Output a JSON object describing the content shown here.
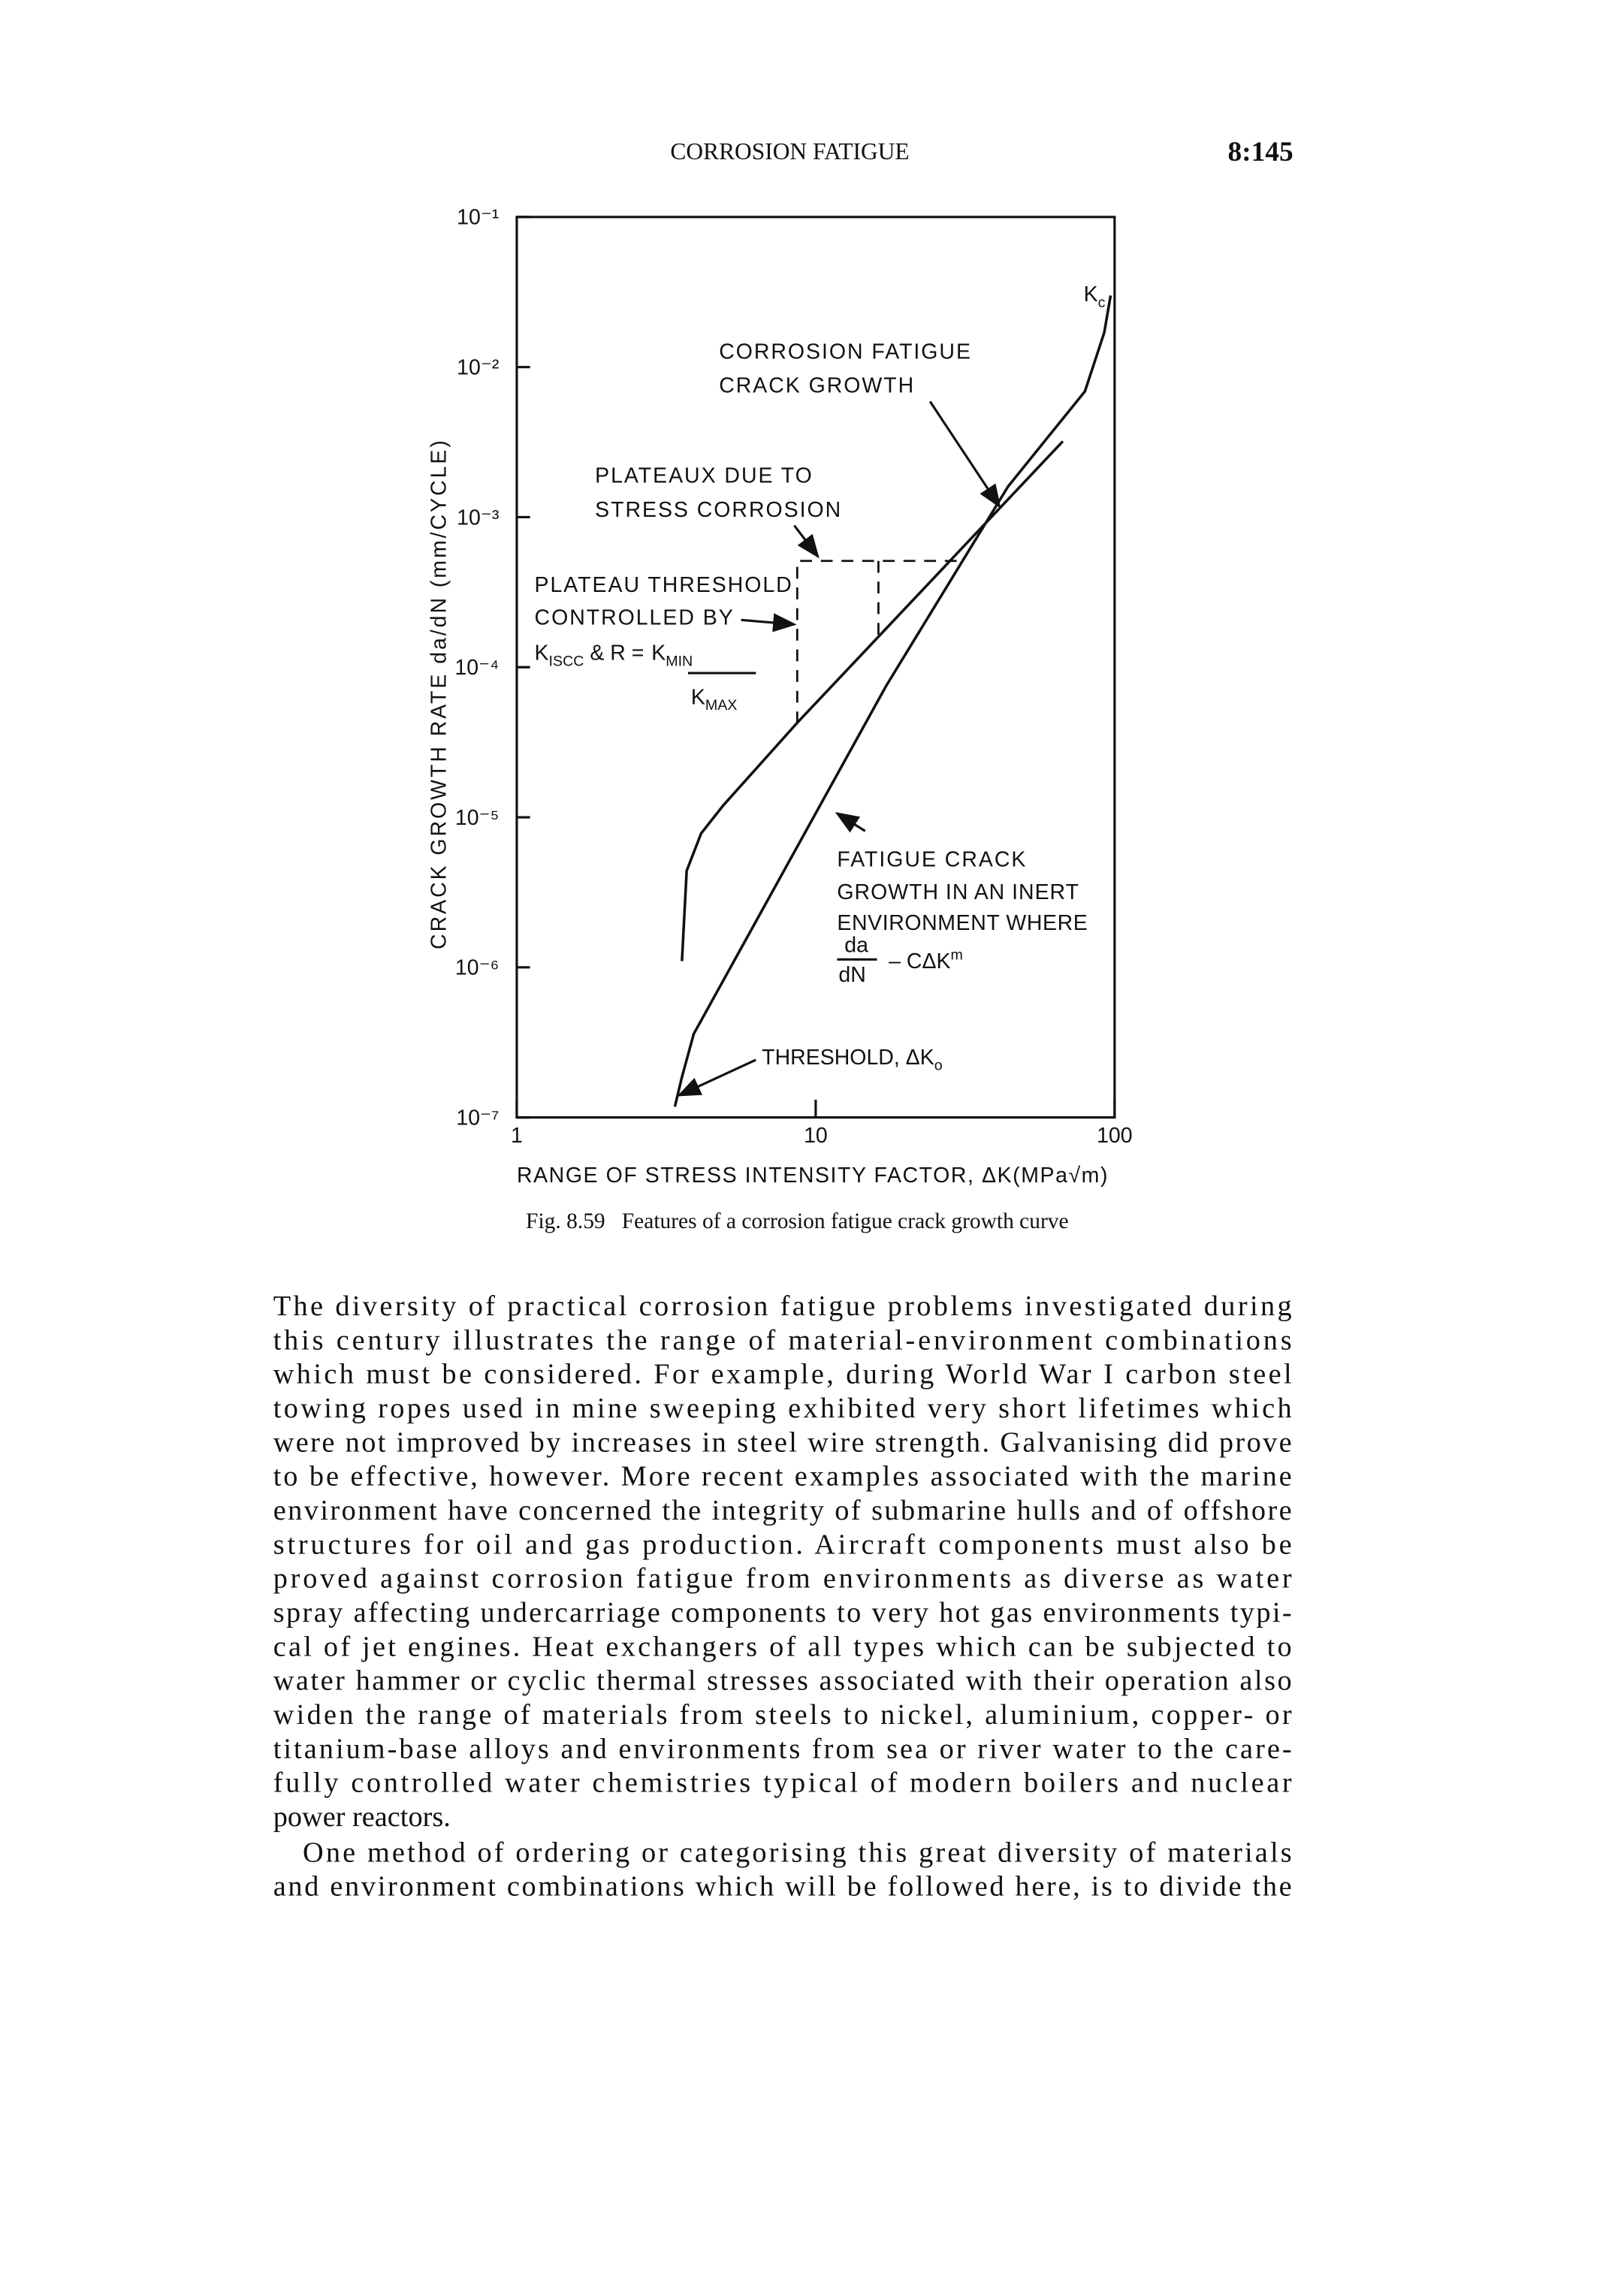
{
  "header": {
    "title": "CORROSION FATIGUE",
    "page": "8:145"
  },
  "chart_data": {
    "type": "line",
    "xscale": "log",
    "yscale": "log",
    "xlabel": "RANGE OF STRESS INTENSITY FACTOR, ΔK(MPa√m)",
    "ylabel": "CRACK GROWTH RATE da/dN (mm/CYCLE)",
    "xlim": [
      1,
      100
    ],
    "xticks": [
      1,
      10,
      100
    ],
    "ylim": [
      1e-07,
      0.1
    ],
    "yticks": [
      {
        "value": 0.1,
        "label": "10⁻¹"
      },
      {
        "value": 0.01,
        "label": "10⁻²"
      },
      {
        "value": 0.001,
        "label": "10⁻³"
      },
      {
        "value": 0.0001,
        "label": "10⁻⁴"
      },
      {
        "value": 1e-05,
        "label": "10⁻⁵"
      },
      {
        "value": 1e-06,
        "label": "10⁻⁶"
      },
      {
        "value": 1e-07,
        "label": "10⁻⁷"
      }
    ],
    "series": [
      {
        "color": "#111111",
        "x": [
          3.38,
          3.57,
          3.91,
          17.2,
          44,
          79.6,
          92.3,
          97.0
        ],
        "values": [
          1.18e-07,
          1.86e-07,
          3.6e-07,
          7.5e-05,
          0.0016,
          0.0069,
          0.017,
          0.03
        ]
      },
      {
        "color": "#111111",
        "x": [
          3.57,
          3.7,
          4.14,
          4.91,
          8.7,
          67.1
        ],
        "values": [
          1.1e-06,
          4.4e-06,
          7.8e-06,
          1.2e-05,
          4.3e-05,
          0.0032
        ]
      }
    ],
    "annotations": {
      "corrosion": [
        "CORROSION FATIGUE",
        "CRACK GROWTH"
      ],
      "plateaux": [
        "PLATEAUX DUE TO",
        "STRESS CORROSION"
      ],
      "threshold_plateau": [
        "PLATEAU THRESHOLD",
        "CONTROLLED BY",
        "K",
        "ISCC",
        "& R =",
        "K",
        "MIN",
        "K",
        "MAX"
      ],
      "inert": [
        "FATIGUE CRACK",
        "GROWTH IN AN INERT",
        "ENVIRONMENT WHERE",
        "da",
        "dN",
        "– CΔK",
        "m"
      ],
      "threshold": [
        "THRESHOLD, ΔK",
        "o"
      ],
      "kc": [
        "K",
        "c"
      ]
    }
  },
  "caption": "Fig. 8.59   Features of a corrosion fatigue crack growth curve",
  "body": [
    [
      "The diversity of practical corrosion fatigue problems investigated during",
      "this century illustrates the range of material-environment combinations",
      "which must be considered. For example, during World War I carbon steel",
      "towing ropes used in mine sweeping exhibited very short lifetimes which",
      "were not improved by increases in steel wire strength. Galvanising did prove",
      "to be effective, however. More recent examples associated with the marine",
      "environment have concerned the integrity of submarine hulls and of offshore",
      "structures for oil and gas production. Aircraft components must also be",
      "proved against corrosion fatigue from environments as diverse as water",
      "spray affecting undercarriage components to very hot gas environments typi-",
      "cal of jet engines. Heat exchangers of all types which can be subjected to",
      "water hammer or cyclic thermal stresses associated with their operation also",
      "widen the range of materials from steels to nickel, aluminium, copper- or",
      "titanium-base alloys and environments from sea or river water to the care-",
      "fully controlled water chemistries typical of modern boilers and nuclear",
      "power reactors."
    ],
    [
      "One method of ordering or categorising this great diversity of materials",
      "and environment combinations which will be followed here, is to divide the"
    ]
  ]
}
